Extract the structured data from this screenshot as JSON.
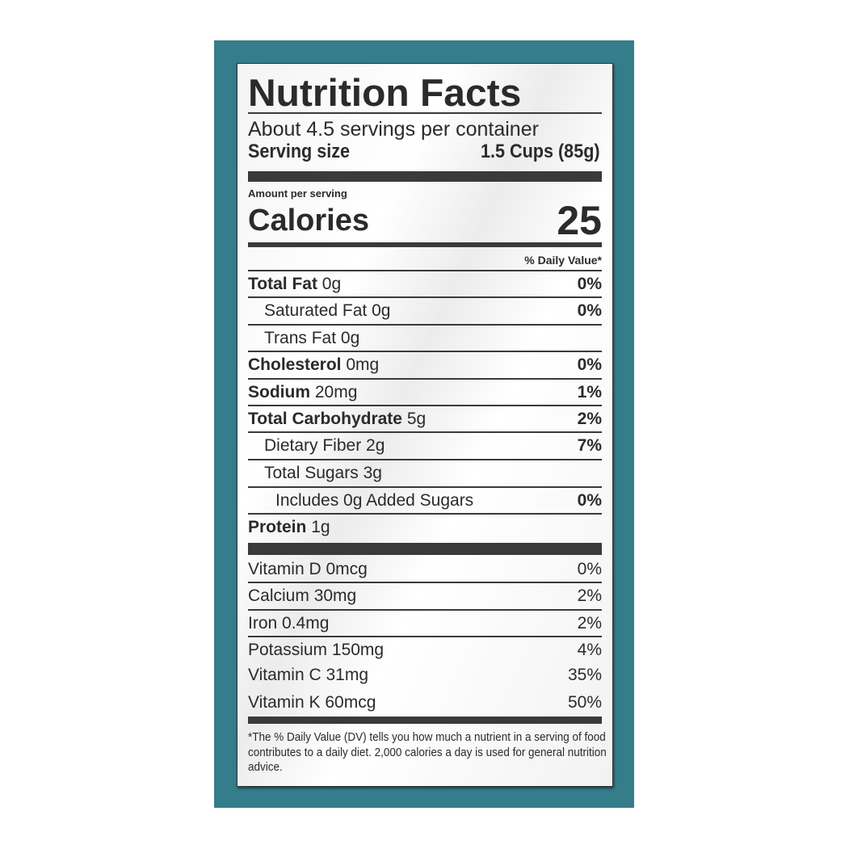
{
  "title": "Nutrition Facts",
  "servings_per_container": "About 4.5 servings per container",
  "serving_size_label": "Serving size",
  "serving_size_value": "1.5 Cups (85g)",
  "amount_per_serving": "Amount per serving",
  "calories_label": "Calories",
  "calories_value": "25",
  "dv_header": "% Daily Value*",
  "nutrients": [
    {
      "name": "Total Fat",
      "amount": "0g",
      "dv": "0%"
    },
    {
      "name": "Saturated Fat",
      "amount": "0g",
      "dv": "0%"
    },
    {
      "name": "Trans Fat",
      "amount": "0g",
      "dv": ""
    },
    {
      "name": "Cholesterol",
      "amount": "0mg",
      "dv": "0%"
    },
    {
      "name": "Sodium",
      "amount": "20mg",
      "dv": "1%"
    },
    {
      "name": "Total Carbohydrate",
      "amount": "5g",
      "dv": "2%"
    },
    {
      "name": "Dietary Fiber",
      "amount": "2g",
      "dv": "7%"
    },
    {
      "name": "Total Sugars",
      "amount": "3g",
      "dv": ""
    },
    {
      "name": "Includes 0g Added Sugars",
      "amount": "",
      "dv": "0%"
    },
    {
      "name": "Protein",
      "amount": "1g",
      "dv": ""
    }
  ],
  "vitamins": [
    {
      "name": "Vitamin D",
      "amount": "0mcg",
      "dv": "0%"
    },
    {
      "name": "Calcium",
      "amount": "30mg",
      "dv": "2%"
    },
    {
      "name": "Iron",
      "amount": "0.4mg",
      "dv": "2%"
    },
    {
      "name": "Potassium",
      "amount": "150mg",
      "dv": "4%"
    },
    {
      "name": "Vitamin C",
      "amount": "31mg",
      "dv": "35%"
    },
    {
      "name": "Vitamin K",
      "amount": "60mcg",
      "dv": "50%"
    }
  ],
  "footnote": "*The % Daily Value (DV) tells you how much a nutrient in a serving of food contributes to a daily diet. 2,000 calories a day is used for general nutrition advice.",
  "colors": {
    "background": "#357d8a",
    "ink": "#2b2a2c"
  }
}
